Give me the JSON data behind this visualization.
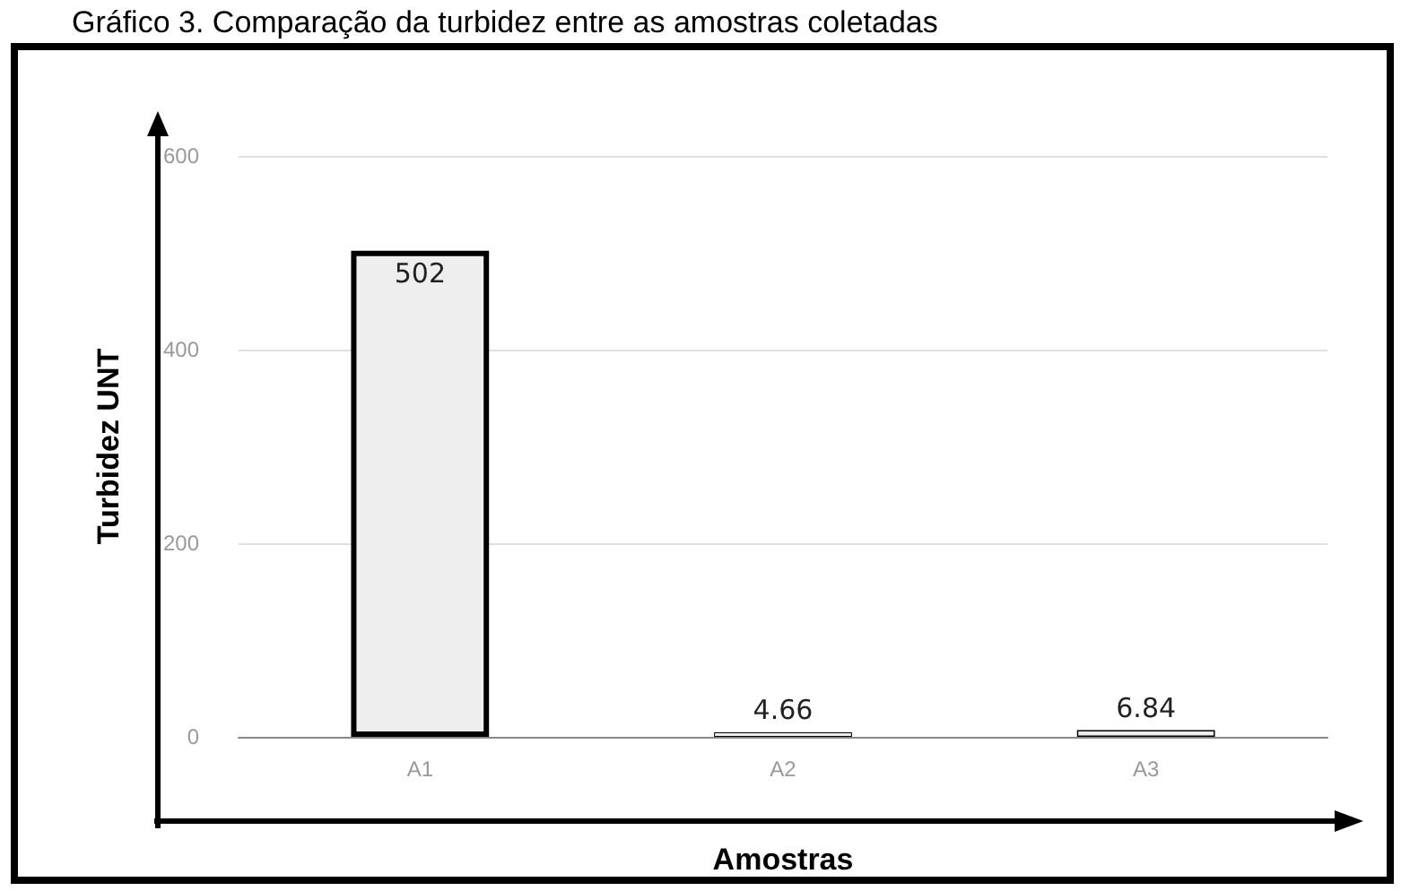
{
  "chart_data": {
    "type": "bar",
    "title": "Gráfico 3. Comparação da turbidez entre as amostras coletadas",
    "xlabel": "Amostras",
    "ylabel": "Turbidez UNT",
    "categories": [
      "A1",
      "A2",
      "A3"
    ],
    "values": [
      502,
      4.66,
      6.84
    ],
    "color": "#eeeeee",
    "ylim": [
      0,
      600
    ],
    "yticks": [
      0,
      200,
      400,
      600
    ],
    "grid": "y",
    "data_labels": true
  }
}
